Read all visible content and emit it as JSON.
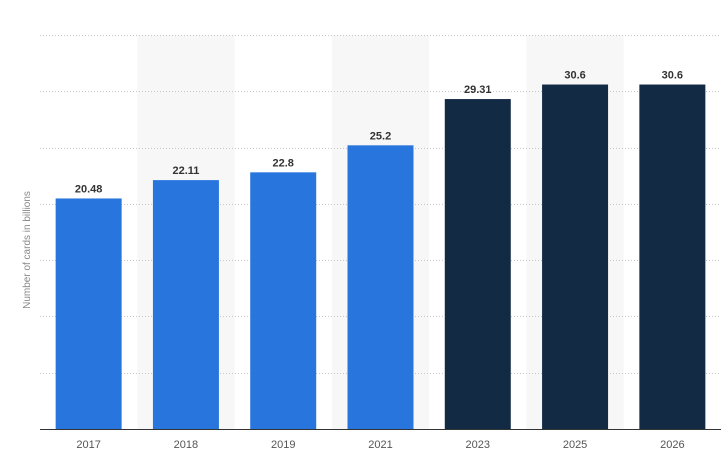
{
  "chart_data": {
    "type": "bar",
    "title": "",
    "xlabel": "",
    "ylabel": "Number of cards in billions",
    "categories": [
      "2017",
      "2018",
      "2019",
      "2021",
      "2023",
      "2025",
      "2026"
    ],
    "values": [
      20.48,
      22.11,
      22.8,
      25.2,
      29.31,
      30.6,
      30.6
    ],
    "value_labels": [
      "20.48",
      "22.11",
      "22.8",
      "25.2",
      "29.31",
      "30.6",
      "30.6"
    ],
    "bar_colors": [
      "#2876dd",
      "#2876dd",
      "#2876dd",
      "#2876dd",
      "#132a45",
      "#132a45",
      "#132a45"
    ],
    "ylim": [
      0,
      35
    ],
    "grid": true,
    "legend": "none",
    "colors": {
      "actual": "#2876dd",
      "forecast": "#132a45",
      "band": "#f7f7f7"
    }
  }
}
